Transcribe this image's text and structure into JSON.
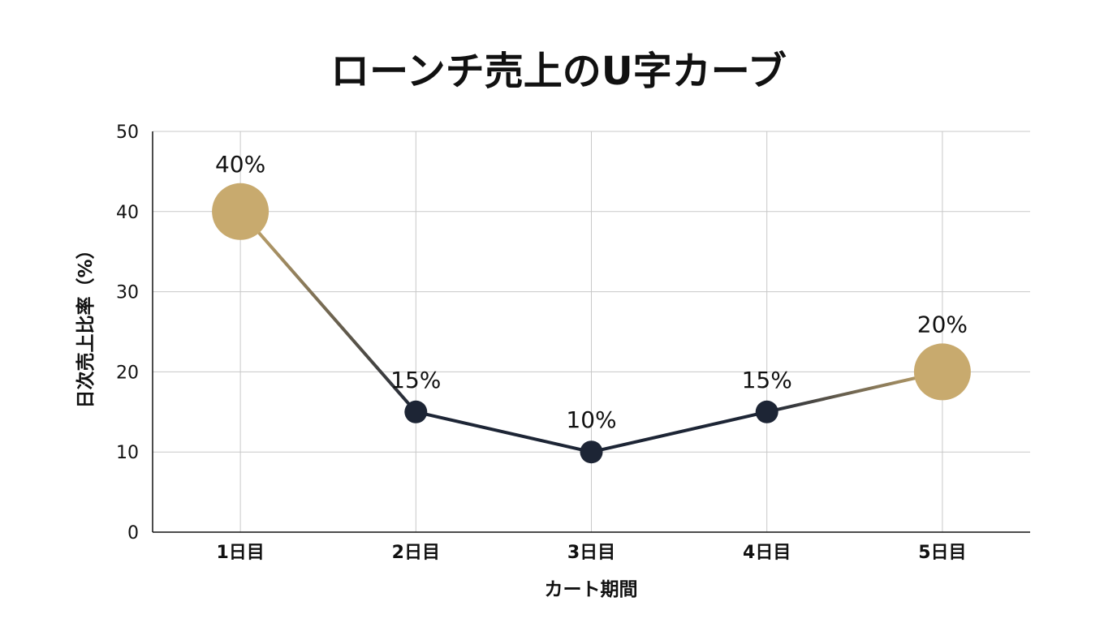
{
  "chart_data": {
    "type": "line",
    "title": "ローンチ売上のU字カーブ",
    "xlabel": "カート期間",
    "ylabel": "日次売上比率（%）",
    "categories": [
      "1日目",
      "2日目",
      "3日目",
      "4日目",
      "5日目"
    ],
    "series": [
      {
        "values": [
          40,
          15,
          10,
          15,
          20
        ]
      }
    ],
    "data_labels": [
      "40%",
      "15%",
      "10%",
      "15%",
      "20%"
    ],
    "highlighted_points": [
      0,
      4
    ],
    "ylim": [
      0,
      50
    ],
    "yticks": [
      0,
      10,
      20,
      30,
      40,
      50
    ],
    "grid": true,
    "legend": "none",
    "colors": {
      "line_dark": "#1d2535",
      "highlight_gold": "#c8aa6e",
      "grid": "#c8c8c8",
      "axis": "#111111"
    }
  }
}
